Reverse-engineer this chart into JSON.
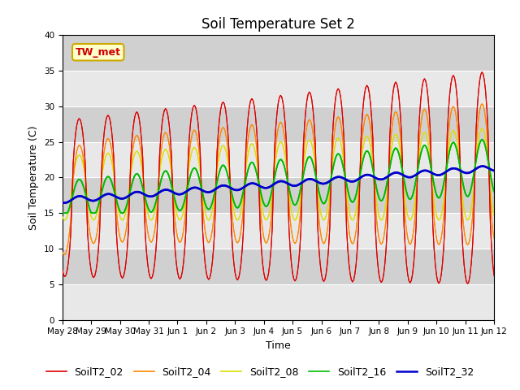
{
  "title": "Soil Temperature Set 2",
  "xlabel": "Time",
  "ylabel": "Soil Temperature (C)",
  "ylim": [
    0,
    40
  ],
  "yticks": [
    0,
    5,
    10,
    15,
    20,
    25,
    30,
    35,
    40
  ],
  "colors": {
    "SoilT2_02": "#dd0000",
    "SoilT2_04": "#ff8800",
    "SoilT2_08": "#dddd00",
    "SoilT2_16": "#00bb00",
    "SoilT2_32": "#0000cc"
  },
  "legend_labels": [
    "SoilT2_02",
    "SoilT2_04",
    "SoilT2_08",
    "SoilT2_16",
    "SoilT2_32"
  ],
  "annotation_text": "TW_met",
  "bg_color": "#dcdcdc",
  "grid_color": "#f0f0f0",
  "title_fontsize": 12
}
